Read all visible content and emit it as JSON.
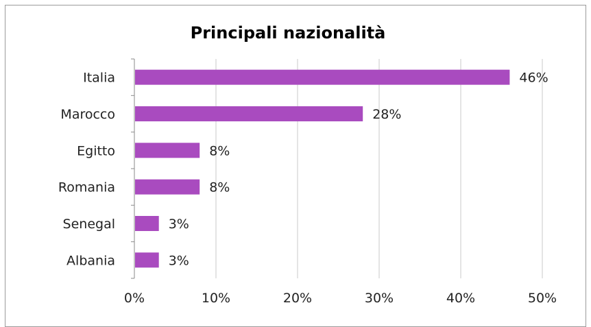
{
  "chart_data": {
    "type": "bar",
    "orientation": "horizontal",
    "title": "Principali nazionalità",
    "categories": [
      "Italia",
      "Marocco",
      "Egitto",
      "Romania",
      "Senegal",
      "Albania"
    ],
    "values": [
      46,
      28,
      8,
      8,
      3,
      3
    ],
    "data_labels": [
      "46%",
      "28%",
      "8%",
      "8%",
      "3%",
      "3%"
    ],
    "x_ticks": [
      "0%",
      "10%",
      "20%",
      "30%",
      "40%",
      "50%"
    ],
    "xlim": [
      0,
      50
    ],
    "grid": "vertical",
    "legend": "none",
    "bar_color": "#a94bbf"
  }
}
